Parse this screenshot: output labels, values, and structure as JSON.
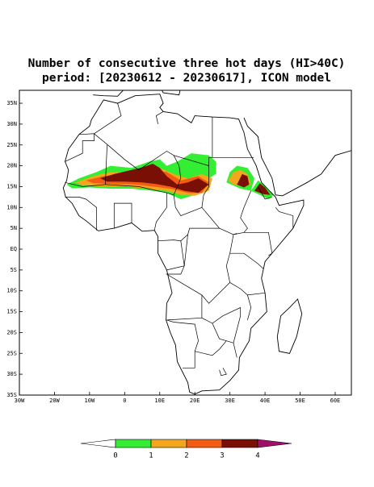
{
  "title": [
    "Number of consecutive three hot days (HI>40C)",
    "period: [20230612 - 20230617], ICON model"
  ],
  "map": {
    "lat_labels": [
      "35N",
      "30N",
      "25N",
      "20N",
      "15N",
      "10N",
      "5N",
      "EQ",
      "5S",
      "10S",
      "15S",
      "20S",
      "25S",
      "30S",
      "35S"
    ],
    "lon_labels": [
      "30W",
      "20W",
      "10W",
      "0",
      "10E",
      "20E",
      "30E",
      "40E",
      "50E",
      "60E"
    ]
  },
  "colorbar": {
    "levels": [
      0,
      1,
      2,
      3,
      4
    ],
    "colors": [
      "#ffffff",
      "#33ee33",
      "#f4a71c",
      "#f25c14",
      "#7a0f05",
      "#a0106a"
    ]
  }
}
